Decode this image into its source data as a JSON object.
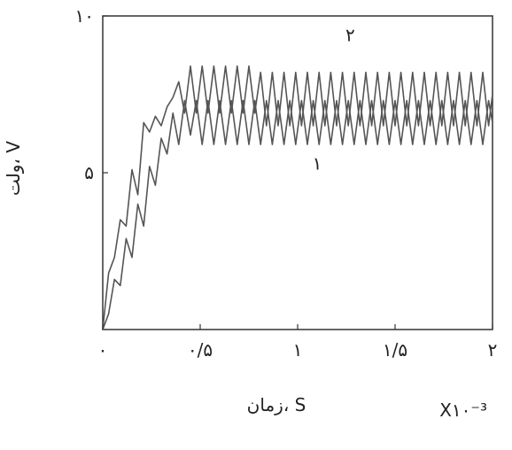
{
  "chart_data": {
    "type": "line",
    "xlabel": "زمان، S",
    "x_multiplier": "X۱۰⁻³",
    "ylabel": "ولت، V",
    "xlim": [
      0,
      2
    ],
    "ylim": [
      0,
      10
    ],
    "x_ticks": [
      {
        "value": 0,
        "label": "۰"
      },
      {
        "value": 0.5,
        "label": "۰/۵"
      },
      {
        "value": 1,
        "label": "۱"
      },
      {
        "value": 1.5,
        "label": "۱/۵"
      },
      {
        "value": 2,
        "label": "۲"
      }
    ],
    "y_ticks": [
      {
        "value": 5,
        "label": "۵"
      },
      {
        "value": 10,
        "label": "۱۰"
      }
    ],
    "grid": false,
    "series": [
      {
        "name": "۱",
        "color": "#555555",
        "x": [
          0.0,
          0.03,
          0.06,
          0.09,
          0.12,
          0.15,
          0.18,
          0.21,
          0.24,
          0.27,
          0.3,
          0.33,
          0.36,
          0.39,
          0.42,
          0.45,
          0.48,
          0.51,
          0.54,
          0.57,
          0.6,
          0.63,
          0.66,
          0.69,
          0.72,
          0.75,
          0.78,
          0.81,
          0.84,
          0.87,
          0.9,
          0.93,
          0.96,
          0.99,
          1.02,
          1.05,
          1.08,
          1.11,
          1.14,
          1.17,
          1.2,
          1.23,
          1.26,
          1.29,
          1.32,
          1.35,
          1.38,
          1.41,
          1.44,
          1.47,
          1.5,
          1.53,
          1.56,
          1.59,
          1.62,
          1.65,
          1.68,
          1.71,
          1.74,
          1.77,
          1.8,
          1.83,
          1.86,
          1.89,
          1.92,
          1.95,
          1.98,
          2.0
        ],
        "y": [
          0.0,
          0.5,
          1.6,
          1.4,
          2.9,
          2.3,
          4.0,
          3.3,
          5.2,
          4.6,
          6.1,
          5.6,
          6.9,
          5.9,
          7.3,
          6.2,
          7.3,
          5.9,
          7.3,
          5.9,
          7.3,
          5.9,
          7.3,
          5.9,
          7.3,
          5.9,
          7.3,
          5.9,
          7.3,
          5.9,
          7.3,
          5.9,
          7.3,
          5.9,
          7.3,
          5.9,
          7.3,
          5.9,
          7.3,
          5.9,
          7.3,
          5.9,
          7.3,
          5.9,
          7.3,
          5.9,
          7.3,
          5.9,
          7.3,
          5.9,
          7.3,
          5.9,
          7.3,
          5.9,
          7.3,
          5.9,
          7.3,
          5.9,
          7.3,
          5.9,
          7.3,
          5.9,
          7.3,
          5.9,
          7.3,
          5.9,
          7.3,
          6.6
        ]
      },
      {
        "name": "۲",
        "color": "#555555",
        "x": [
          0.0,
          0.03,
          0.06,
          0.09,
          0.12,
          0.15,
          0.18,
          0.21,
          0.24,
          0.27,
          0.3,
          0.33,
          0.36,
          0.39,
          0.42,
          0.45,
          0.48,
          0.51,
          0.54,
          0.57,
          0.6,
          0.63,
          0.66,
          0.69,
          0.72,
          0.75,
          0.78,
          0.81,
          0.84,
          0.87,
          0.9,
          0.93,
          0.96,
          0.99,
          1.02,
          1.05,
          1.08,
          1.11,
          1.14,
          1.17,
          1.2,
          1.23,
          1.26,
          1.29,
          1.32,
          1.35,
          1.38,
          1.41,
          1.44,
          1.47,
          1.5,
          1.53,
          1.56,
          1.59,
          1.62,
          1.65,
          1.68,
          1.71,
          1.74,
          1.77,
          1.8,
          1.83,
          1.86,
          1.89,
          1.92,
          1.95,
          1.98,
          2.0
        ],
        "y": [
          0.0,
          1.8,
          2.3,
          3.5,
          3.3,
          5.1,
          4.3,
          6.6,
          6.3,
          6.8,
          6.5,
          7.1,
          7.4,
          7.9,
          6.9,
          8.4,
          6.9,
          8.4,
          6.9,
          8.4,
          6.9,
          8.4,
          6.9,
          8.4,
          6.9,
          8.4,
          6.9,
          8.2,
          6.5,
          8.2,
          6.5,
          8.2,
          6.5,
          8.2,
          6.5,
          8.2,
          6.5,
          8.2,
          6.5,
          8.2,
          6.5,
          8.2,
          6.5,
          8.2,
          6.5,
          8.2,
          6.5,
          8.2,
          6.5,
          8.2,
          6.5,
          8.2,
          6.5,
          8.2,
          6.5,
          8.2,
          6.5,
          8.2,
          6.5,
          8.2,
          6.5,
          8.2,
          6.5,
          8.2,
          6.5,
          8.2,
          6.5,
          7.5
        ]
      }
    ],
    "annotations": [
      {
        "text": "۱",
        "x": 1.1,
        "y": 5.1
      },
      {
        "text": "۲",
        "x": 1.27,
        "y": 9.2
      }
    ]
  }
}
